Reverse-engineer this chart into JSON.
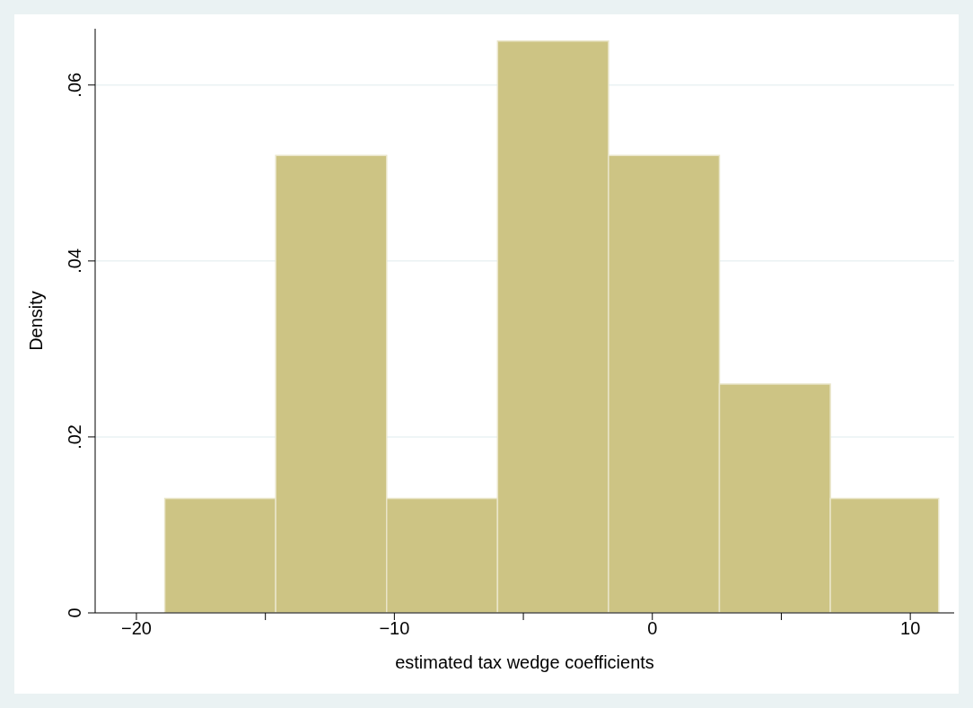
{
  "chart_data": {
    "type": "histogram",
    "xlabel": "estimated tax wedge coefficients",
    "ylabel": "Density",
    "bins": [
      -18.9,
      -14.6,
      -10.3,
      -6.0,
      -1.7,
      2.6,
      6.9,
      11.1
    ],
    "values": [
      0.013,
      0.052,
      0.013,
      0.065,
      0.052,
      0.026,
      0.013
    ],
    "color": "#cdc484",
    "xlim": [
      -21.6,
      11.7
    ],
    "xticks": [
      {
        "value": -20,
        "label": "−20"
      },
      {
        "value": -15,
        "label": null
      },
      {
        "value": -10,
        "label": "−10"
      },
      {
        "value": -5,
        "label": null
      },
      {
        "value": 0,
        "label": "0"
      },
      {
        "value": 5,
        "label": null
      },
      {
        "value": 10,
        "label": "10"
      }
    ],
    "ylim": [
      0,
      0.0664
    ],
    "yticks": [
      {
        "value": 0,
        "label": "0"
      },
      {
        "value": 0.02,
        "label": ".02"
      },
      {
        "value": 0.04,
        "label": ".04"
      },
      {
        "value": 0.06,
        "label": ".06"
      }
    ],
    "grid": "y"
  }
}
